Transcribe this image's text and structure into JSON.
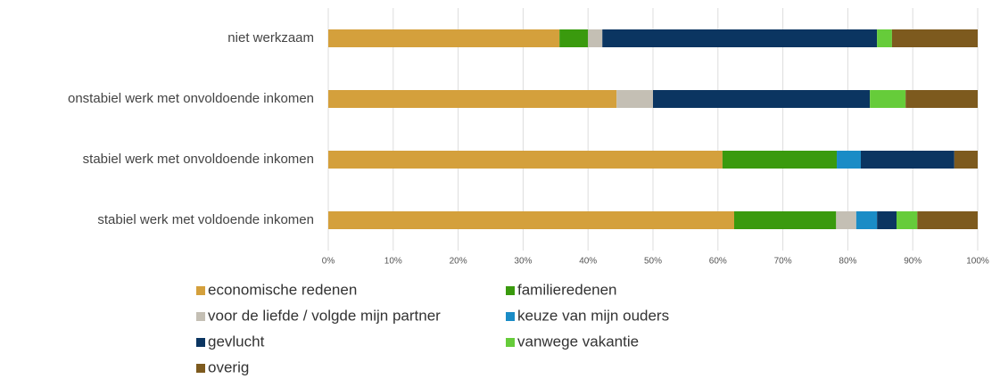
{
  "chart_data": {
    "type": "bar",
    "orientation": "horizontal",
    "stacked": true,
    "categories": [
      "niet werkzaam",
      "onstabiel werk met onvoldoende inkomen",
      "stabiel werk met onvoldoende inkomen",
      "stabiel werk met voldoende inkomen"
    ],
    "series": [
      {
        "name": "economische redenen",
        "color": "#d4a03c",
        "values": [
          35.6,
          44.4,
          60.7,
          62.5
        ]
      },
      {
        "name": "familieredenen",
        "color": "#3a9a0e",
        "values": [
          4.4,
          0,
          17.6,
          15.7
        ]
      },
      {
        "name": "voor de liefde / volgde mijn partner",
        "color": "#c4bfb4",
        "values": [
          2.2,
          5.6,
          0,
          3.1
        ]
      },
      {
        "name": "keuze van mijn ouders",
        "color": "#1a8cc6",
        "values": [
          0,
          0,
          3.7,
          3.2
        ]
      },
      {
        "name": "gevlucht",
        "color": "#0b3561",
        "values": [
          42.3,
          33.4,
          14.4,
          3.0
        ]
      },
      {
        "name": "vanwege vakantie",
        "color": "#66cc3a",
        "values": [
          2.3,
          5.5,
          0,
          3.2
        ]
      },
      {
        "name": "overig",
        "color": "#7d5a1e",
        "values": [
          13.2,
          11.1,
          3.6,
          9.3
        ]
      }
    ],
    "xlim": [
      0,
      100
    ],
    "xticks": [
      {
        "value": 0,
        "label": "0%"
      },
      {
        "value": 10,
        "label": "10%"
      },
      {
        "value": 20,
        "label": "20%"
      },
      {
        "value": 30,
        "label": "30%"
      },
      {
        "value": 40,
        "label": "40%"
      },
      {
        "value": 50,
        "label": "50%"
      },
      {
        "value": 60,
        "label": "60%"
      },
      {
        "value": 70,
        "label": "70%"
      },
      {
        "value": 80,
        "label": "80%"
      },
      {
        "value": 90,
        "label": "90%"
      },
      {
        "value": 100,
        "label": "100%"
      }
    ],
    "grid": true,
    "legend": "bottom"
  }
}
